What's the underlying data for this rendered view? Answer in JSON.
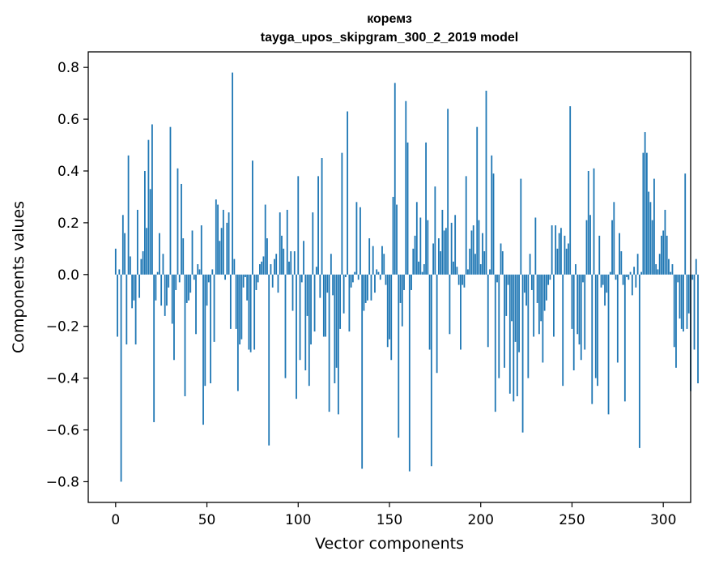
{
  "chart_data": {
    "type": "bar",
    "title": "коремз",
    "subtitle": "tayga_upos_skipgram_300_2_2019 model",
    "xlabel": "Vector components",
    "ylabel": "Components values",
    "xlim": [
      -15,
      315
    ],
    "ylim": [
      -0.88,
      0.86
    ],
    "xticks": [
      0,
      50,
      100,
      150,
      200,
      250,
      300
    ],
    "yticks": [
      -0.8,
      -0.6,
      -0.4,
      -0.2,
      0.0,
      0.2,
      0.4,
      0.6,
      0.8
    ],
    "ytick_labels": [
      "−0.8",
      "−0.6",
      "−0.4",
      "−0.2",
      "0.0",
      "0.2",
      "0.4",
      "0.6",
      "0.8"
    ],
    "xtick_labels": [
      "0",
      "50",
      "100",
      "150",
      "200",
      "250",
      "300"
    ],
    "bar_color": "#1f77b4",
    "values": [
      0.1,
      -0.24,
      0.02,
      -0.8,
      0.23,
      0.16,
      -0.27,
      0.46,
      0.07,
      -0.13,
      -0.1,
      -0.27,
      0.25,
      -0.09,
      0.06,
      0.09,
      0.4,
      0.18,
      0.52,
      0.33,
      0.58,
      -0.57,
      -0.1,
      0.01,
      0.16,
      -0.12,
      0.08,
      -0.16,
      -0.12,
      -0.05,
      0.57,
      -0.19,
      -0.33,
      -0.06,
      0.41,
      -0.03,
      0.35,
      0.14,
      -0.47,
      -0.11,
      -0.1,
      -0.07,
      0.17,
      -0.02,
      -0.23,
      0.04,
      0.02,
      0.19,
      -0.58,
      -0.43,
      -0.12,
      -0.03,
      -0.42,
      0.02,
      -0.26,
      0.29,
      0.27,
      0.13,
      0.18,
      0.25,
      -0.02,
      0.2,
      0.24,
      -0.21,
      0.78,
      0.06,
      -0.21,
      -0.45,
      -0.27,
      -0.25,
      -0.05,
      -0.01,
      -0.1,
      -0.29,
      -0.3,
      0.44,
      -0.29,
      -0.06,
      -0.03,
      0.04,
      0.05,
      0.07,
      0.27,
      0.14,
      -0.66,
      0.04,
      -0.05,
      0.06,
      0.08,
      -0.07,
      0.24,
      0.15,
      0.1,
      -0.4,
      0.25,
      0.05,
      0.09,
      -0.14,
      0.09,
      -0.48,
      0.38,
      -0.33,
      -0.03,
      0.13,
      -0.37,
      -0.16,
      -0.43,
      -0.27,
      0.24,
      -0.22,
      0.03,
      0.38,
      -0.09,
      0.45,
      -0.24,
      -0.24,
      -0.07,
      -0.53,
      0.08,
      -0.08,
      -0.42,
      -0.36,
      -0.54,
      -0.21,
      0.47,
      -0.15,
      -0.01,
      0.63,
      -0.22,
      -0.05,
      -0.03,
      0.01,
      0.28,
      -0.02,
      0.26,
      -0.75,
      -0.14,
      -0.11,
      -0.1,
      0.14,
      -0.1,
      0.11,
      -0.07,
      0.02,
      0.01,
      -0.02,
      0.11,
      0.08,
      -0.04,
      -0.28,
      -0.25,
      -0.33,
      0.3,
      0.74,
      0.27,
      -0.63,
      -0.11,
      -0.2,
      -0.06,
      0.67,
      0.51,
      -0.76,
      -0.06,
      0.1,
      0.15,
      0.28,
      0.05,
      0.22,
      0.01,
      0.04,
      0.51,
      0.21,
      -0.29,
      -0.74,
      0.12,
      0.34,
      -0.38,
      0.14,
      0.09,
      0.25,
      0.17,
      0.18,
      0.64,
      -0.23,
      0.2,
      0.05,
      0.23,
      0.03,
      -0.04,
      -0.29,
      -0.04,
      -0.05,
      0.38,
      0.02,
      0.1,
      0.17,
      0.19,
      0.08,
      0.57,
      0.21,
      0.04,
      0.16,
      0.09,
      0.71,
      -0.28,
      0.02,
      0.46,
      0.39,
      -0.53,
      -0.03,
      -0.4,
      0.12,
      0.09,
      -0.36,
      -0.16,
      -0.04,
      -0.46,
      -0.18,
      -0.49,
      -0.26,
      -0.47,
      -0.3,
      0.37,
      -0.61,
      -0.07,
      -0.12,
      -0.4,
      0.08,
      -0.06,
      -0.24,
      0.22,
      -0.11,
      -0.23,
      -0.18,
      -0.34,
      -0.14,
      -0.1,
      -0.04,
      -0.02,
      0.19,
      -0.24,
      0.19,
      0.1,
      0.16,
      0.18,
      -0.43,
      0.15,
      0.1,
      0.12,
      0.65,
      -0.21,
      -0.37,
      0.04,
      -0.23,
      -0.27,
      -0.33,
      -0.03,
      -0.29,
      0.21,
      0.4,
      0.23,
      -0.5,
      0.41,
      -0.4,
      -0.43,
      0.15,
      -0.05,
      -0.04,
      -0.12,
      -0.07,
      -0.54,
      0.01,
      0.21,
      0.28,
      -0.02,
      -0.34,
      0.16,
      0.09,
      -0.04,
      -0.49,
      -0.01,
      -0.02,
      0.01,
      -0.08,
      0.03,
      -0.05,
      0.08,
      -0.67,
      0.01,
      0.47,
      0.55,
      0.47,
      0.32,
      0.28,
      0.21,
      0.37,
      0.04,
      0.02,
      0.08,
      0.15,
      0.17,
      0.25,
      0.15,
      0.06,
      0.01,
      0.04,
      -0.28,
      -0.36,
      -0.03,
      -0.17,
      -0.21,
      -0.22,
      0.39,
      -0.21,
      -0.15,
      -0.45,
      -0.02,
      -0.29,
      0.06,
      -0.42
    ]
  }
}
